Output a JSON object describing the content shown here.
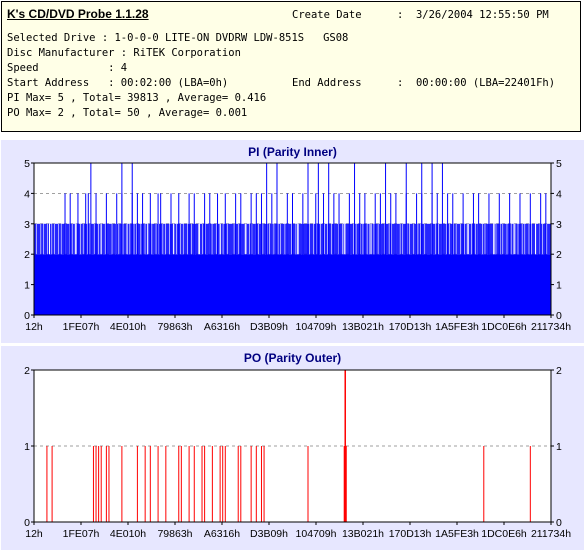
{
  "app_title": "K's CD/DVD Probe 1.1.28",
  "info": {
    "create_date_label": "Create Date",
    "create_date_value": ":  3/26/2004 12:55:50 PM",
    "selected_drive": "Selected Drive : 1-0-0-0 LITE-ON DVDRW LDW-851S   GS08",
    "disc_manufacturer": "Disc Manufacturer : RiTEK Corporation",
    "speed": "Speed           : 4",
    "start_address": "Start Address   : 00:02:00 (LBA=0h)",
    "end_address_label": "End Address",
    "end_address_value": ":  00:00:00 (LBA=22401Fh)",
    "pi_summary": "PI Max= 5 , Total= 39813 , Average= 0.416",
    "po_summary": "PO Max= 2 , Total= 50 , Average= 0.001"
  },
  "colors": {
    "info_bg": "#ffffe7",
    "panel_bg": "#e7e7ff",
    "plot_bg": "#ffffff",
    "pi_bar": "#0000ff",
    "po_bar": "#ff0000",
    "title": "#000080"
  },
  "chart_data": [
    {
      "type": "bar",
      "title": "PI (Parity Inner)",
      "ylim": [
        0,
        5
      ],
      "yticks": [
        0,
        1,
        2,
        3,
        4,
        5
      ],
      "xlim": [
        0,
        2236447
      ],
      "x_tick_labels": [
        "12h",
        "1FE07h",
        "4E010h",
        "79863h",
        "A6316h",
        "D3B09h",
        "104709h",
        "13B021h",
        "170D13h",
        "1A5FE3h",
        "1DC0E6h",
        "211734h"
      ],
      "grid": "horizontal-dashed",
      "baseline_level": 2,
      "common_level": 3,
      "peaks_4": [
        0.06,
        0.07,
        0.085,
        0.1,
        0.105,
        0.12,
        0.14,
        0.16,
        0.17,
        0.19,
        0.2,
        0.21,
        0.225,
        0.24,
        0.245,
        0.265,
        0.28,
        0.3,
        0.31,
        0.33,
        0.34,
        0.355,
        0.37,
        0.39,
        0.4,
        0.42,
        0.43,
        0.44,
        0.46,
        0.47,
        0.49,
        0.5,
        0.52,
        0.53,
        0.545,
        0.56,
        0.58,
        0.59,
        0.61,
        0.63,
        0.64,
        0.66,
        0.67,
        0.69,
        0.7,
        0.72,
        0.74,
        0.75,
        0.77,
        0.78,
        0.8,
        0.81,
        0.83,
        0.85,
        0.86,
        0.88,
        0.9,
        0.92,
        0.94,
        0.96,
        0.98,
        0.99
      ],
      "peaks_5": [
        0.11,
        0.17,
        0.19,
        0.45,
        0.47,
        0.53,
        0.55,
        0.57,
        0.62,
        0.68,
        0.72,
        0.75,
        0.77,
        0.79
      ],
      "dips_2": [
        0.03,
        0.08,
        0.13,
        0.18,
        0.22,
        0.27,
        0.32,
        0.36,
        0.41,
        0.46,
        0.51,
        0.56,
        0.6,
        0.65,
        0.7,
        0.74,
        0.79,
        0.84,
        0.89,
        0.93,
        0.97
      ]
    },
    {
      "type": "bar",
      "title": "PO (Parity Outer)",
      "ylim": [
        0,
        2
      ],
      "yticks": [
        0,
        1,
        2
      ],
      "xlim": [
        0,
        2236447
      ],
      "x_tick_labels": [
        "12h",
        "1FE07h",
        "4E010h",
        "79863h",
        "A6316h",
        "D3B09h",
        "104709h",
        "13B021h",
        "170D13h",
        "1A5FE3h",
        "1DC0E6h",
        "211734h"
      ],
      "grid": "horizontal-dashed",
      "peaks_1": [
        0.025,
        0.035,
        0.115,
        0.12,
        0.125,
        0.13,
        0.14,
        0.145,
        0.17,
        0.2,
        0.215,
        0.225,
        0.24,
        0.255,
        0.28,
        0.285,
        0.3,
        0.31,
        0.325,
        0.33,
        0.345,
        0.36,
        0.365,
        0.37,
        0.395,
        0.4,
        0.42,
        0.43,
        0.44,
        0.445,
        0.53,
        0.6,
        0.601,
        0.604,
        0.87,
        0.96
      ],
      "peaks_2": [
        0.602
      ]
    }
  ]
}
